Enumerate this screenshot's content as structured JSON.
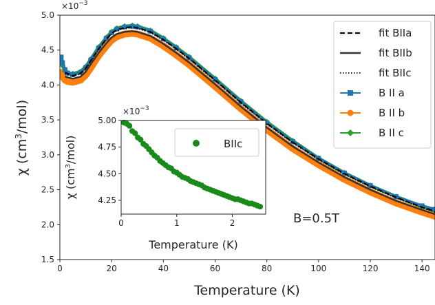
{
  "chart_data": [
    {
      "type": "line",
      "xlabel": "Temperature (K)",
      "ylabel": "χ (cm³/mol)",
      "ylabel_base": "χ (cm",
      "ylabel_sup": "3",
      "ylabel_tail": "/mol)",
      "offset_text_base": "×10",
      "offset_text_exp": "−3",
      "xlim": [
        0,
        145
      ],
      "ylim": [
        1.5,
        5.0
      ],
      "xticks": [
        "0",
        "20",
        "40",
        "60",
        "80",
        "100",
        "120",
        "140"
      ],
      "yticks": [
        "1.5",
        "2.0",
        "2.5",
        "3.0",
        "3.5",
        "4.0",
        "4.5",
        "5.0"
      ],
      "annotation": "B=0.5T",
      "legend": [
        {
          "label": "fit BIIa",
          "style": "dashed",
          "color": "#000000"
        },
        {
          "label": "fit BIIb",
          "style": "solid",
          "color": "#333333"
        },
        {
          "label": "fit BIIc",
          "style": "dotted",
          "color": "#000000"
        },
        {
          "label": "B II a",
          "style": "square-marker",
          "color": "#1f77b4"
        },
        {
          "label": "B II b",
          "style": "circle-marker",
          "color": "#ff7f0e"
        },
        {
          "label": "B II c",
          "style": "diamond-marker",
          "color": "#2ca02c"
        }
      ],
      "series": [
        {
          "name": "B II b",
          "color": "#ff7f0e",
          "x": [
            0.5,
            1,
            2,
            3,
            5,
            8,
            10,
            12,
            15,
            18,
            20,
            22,
            25,
            28,
            30,
            35,
            40,
            45,
            50,
            60,
            70,
            80,
            90,
            100,
            110,
            120,
            130,
            140,
            145
          ],
          "y": [
            4.18,
            4.12,
            4.07,
            4.05,
            4.04,
            4.07,
            4.14,
            4.25,
            4.42,
            4.56,
            4.64,
            4.69,
            4.73,
            4.74,
            4.73,
            4.67,
            4.56,
            4.43,
            4.29,
            3.98,
            3.66,
            3.36,
            3.09,
            2.86,
            2.65,
            2.47,
            2.31,
            2.18,
            2.12
          ]
        },
        {
          "name": "B II c",
          "color": "#2ca02c",
          "x": [
            0.5,
            1,
            2,
            3,
            5,
            8,
            10,
            12,
            15,
            18,
            20,
            22,
            25,
            28,
            30,
            35,
            40,
            45,
            50,
            60,
            70,
            80,
            90,
            100,
            110,
            120,
            130,
            140,
            145
          ],
          "y": [
            4.35,
            4.28,
            4.2,
            4.17,
            4.16,
            4.19,
            4.26,
            4.37,
            4.54,
            4.68,
            4.76,
            4.81,
            4.84,
            4.85,
            4.84,
            4.78,
            4.67,
            4.54,
            4.4,
            4.09,
            3.77,
            3.47,
            3.2,
            2.95,
            2.74,
            2.56,
            2.4,
            2.26,
            2.2
          ]
        },
        {
          "name": "B II a",
          "color": "#1f77b4",
          "x": [
            0.5,
            1,
            2,
            3,
            5,
            8,
            10,
            12,
            15,
            18,
            20,
            22,
            25,
            28,
            30,
            35,
            40,
            45,
            50,
            60,
            70,
            80,
            90,
            100,
            110,
            120,
            130,
            140,
            145
          ],
          "y": [
            4.4,
            4.32,
            4.22,
            4.17,
            4.15,
            4.18,
            4.25,
            4.36,
            4.53,
            4.67,
            4.75,
            4.8,
            4.83,
            4.84,
            4.83,
            4.77,
            4.66,
            4.53,
            4.39,
            4.08,
            3.76,
            3.46,
            3.19,
            2.95,
            2.74,
            2.56,
            2.4,
            2.27,
            2.22
          ]
        },
        {
          "name": "fit BIIa",
          "color": "#000000",
          "x": [
            2,
            5,
            8,
            10,
            12,
            15,
            18,
            20,
            22,
            25,
            28,
            30,
            35,
            40,
            45,
            50,
            60,
            70,
            80,
            90,
            100,
            110,
            120,
            130,
            140,
            145
          ],
          "y": [
            4.18,
            4.13,
            4.17,
            4.24,
            4.35,
            4.52,
            4.66,
            4.74,
            4.79,
            4.82,
            4.83,
            4.82,
            4.76,
            4.65,
            4.52,
            4.38,
            4.07,
            3.75,
            3.45,
            3.18,
            2.94,
            2.73,
            2.55,
            2.39,
            2.25,
            2.19
          ]
        },
        {
          "name": "fit BIIb",
          "color": "#333333",
          "x": [
            2,
            5,
            8,
            10,
            12,
            15,
            18,
            20,
            22,
            25,
            28,
            30,
            35,
            40,
            45,
            50,
            60,
            70,
            80,
            90,
            100,
            110,
            120,
            130,
            140,
            145
          ],
          "y": [
            4.12,
            4.09,
            4.12,
            4.19,
            4.3,
            4.46,
            4.6,
            4.68,
            4.73,
            4.76,
            4.77,
            4.76,
            4.7,
            4.59,
            4.46,
            4.32,
            4.01,
            3.69,
            3.39,
            3.12,
            2.89,
            2.68,
            2.5,
            2.34,
            2.21,
            2.15
          ]
        },
        {
          "name": "fit BIIc",
          "color": "#000000",
          "x": [
            2,
            5,
            8,
            10,
            12,
            15,
            18,
            20,
            22,
            25,
            28,
            30,
            35,
            40,
            45,
            50,
            60,
            70,
            80,
            90,
            100,
            110,
            120,
            130,
            140,
            145
          ],
          "y": [
            4.16,
            4.12,
            4.16,
            4.23,
            4.34,
            4.51,
            4.65,
            4.73,
            4.78,
            4.81,
            4.82,
            4.81,
            4.75,
            4.64,
            4.51,
            4.37,
            4.06,
            3.74,
            3.44,
            3.17,
            2.93,
            2.72,
            2.54,
            2.38,
            2.24,
            2.18
          ]
        }
      ]
    },
    {
      "type": "scatter",
      "xlabel": "Temperature (K)",
      "ylabel": "χ (cm³/mol)",
      "ylabel_base": "χ (cm",
      "ylabel_sup": "3",
      "ylabel_tail": "/mol)",
      "offset_text_base": "×10",
      "offset_text_exp": "−3",
      "xlim": [
        0,
        2.6
      ],
      "ylim": [
        4.12,
        5.0
      ],
      "xticks": [
        "0",
        "1",
        "2"
      ],
      "yticks": [
        "4.25",
        "4.50",
        "4.75",
        "5.00"
      ],
      "legend": [
        {
          "label": "BIIc",
          "color": "#1a8a1a"
        }
      ],
      "series": [
        {
          "name": "BIIc",
          "color": "#1a8a1a",
          "x": [
            0.05,
            0.1,
            0.15,
            0.2,
            0.25,
            0.3,
            0.35,
            0.4,
            0.45,
            0.5,
            0.55,
            0.6,
            0.65,
            0.7,
            0.75,
            0.8,
            0.85,
            0.9,
            0.95,
            1.0,
            1.05,
            1.1,
            1.15,
            1.2,
            1.25,
            1.3,
            1.35,
            1.4,
            1.45,
            1.5,
            1.55,
            1.6,
            1.65,
            1.7,
            1.75,
            1.8,
            1.85,
            1.9,
            1.95,
            2.0,
            2.05,
            2.1,
            2.15,
            2.2,
            2.25,
            2.3,
            2.35,
            2.4,
            2.45,
            2.5
          ],
          "y": [
            4.98,
            4.97,
            4.95,
            4.9,
            4.88,
            4.84,
            4.82,
            4.78,
            4.76,
            4.73,
            4.7,
            4.67,
            4.65,
            4.62,
            4.6,
            4.58,
            4.56,
            4.55,
            4.52,
            4.51,
            4.49,
            4.47,
            4.46,
            4.45,
            4.43,
            4.42,
            4.41,
            4.4,
            4.39,
            4.37,
            4.36,
            4.35,
            4.34,
            4.33,
            4.32,
            4.31,
            4.3,
            4.29,
            4.28,
            4.27,
            4.26,
            4.26,
            4.25,
            4.24,
            4.23,
            4.22,
            4.22,
            4.21,
            4.2,
            4.19
          ]
        }
      ]
    }
  ]
}
